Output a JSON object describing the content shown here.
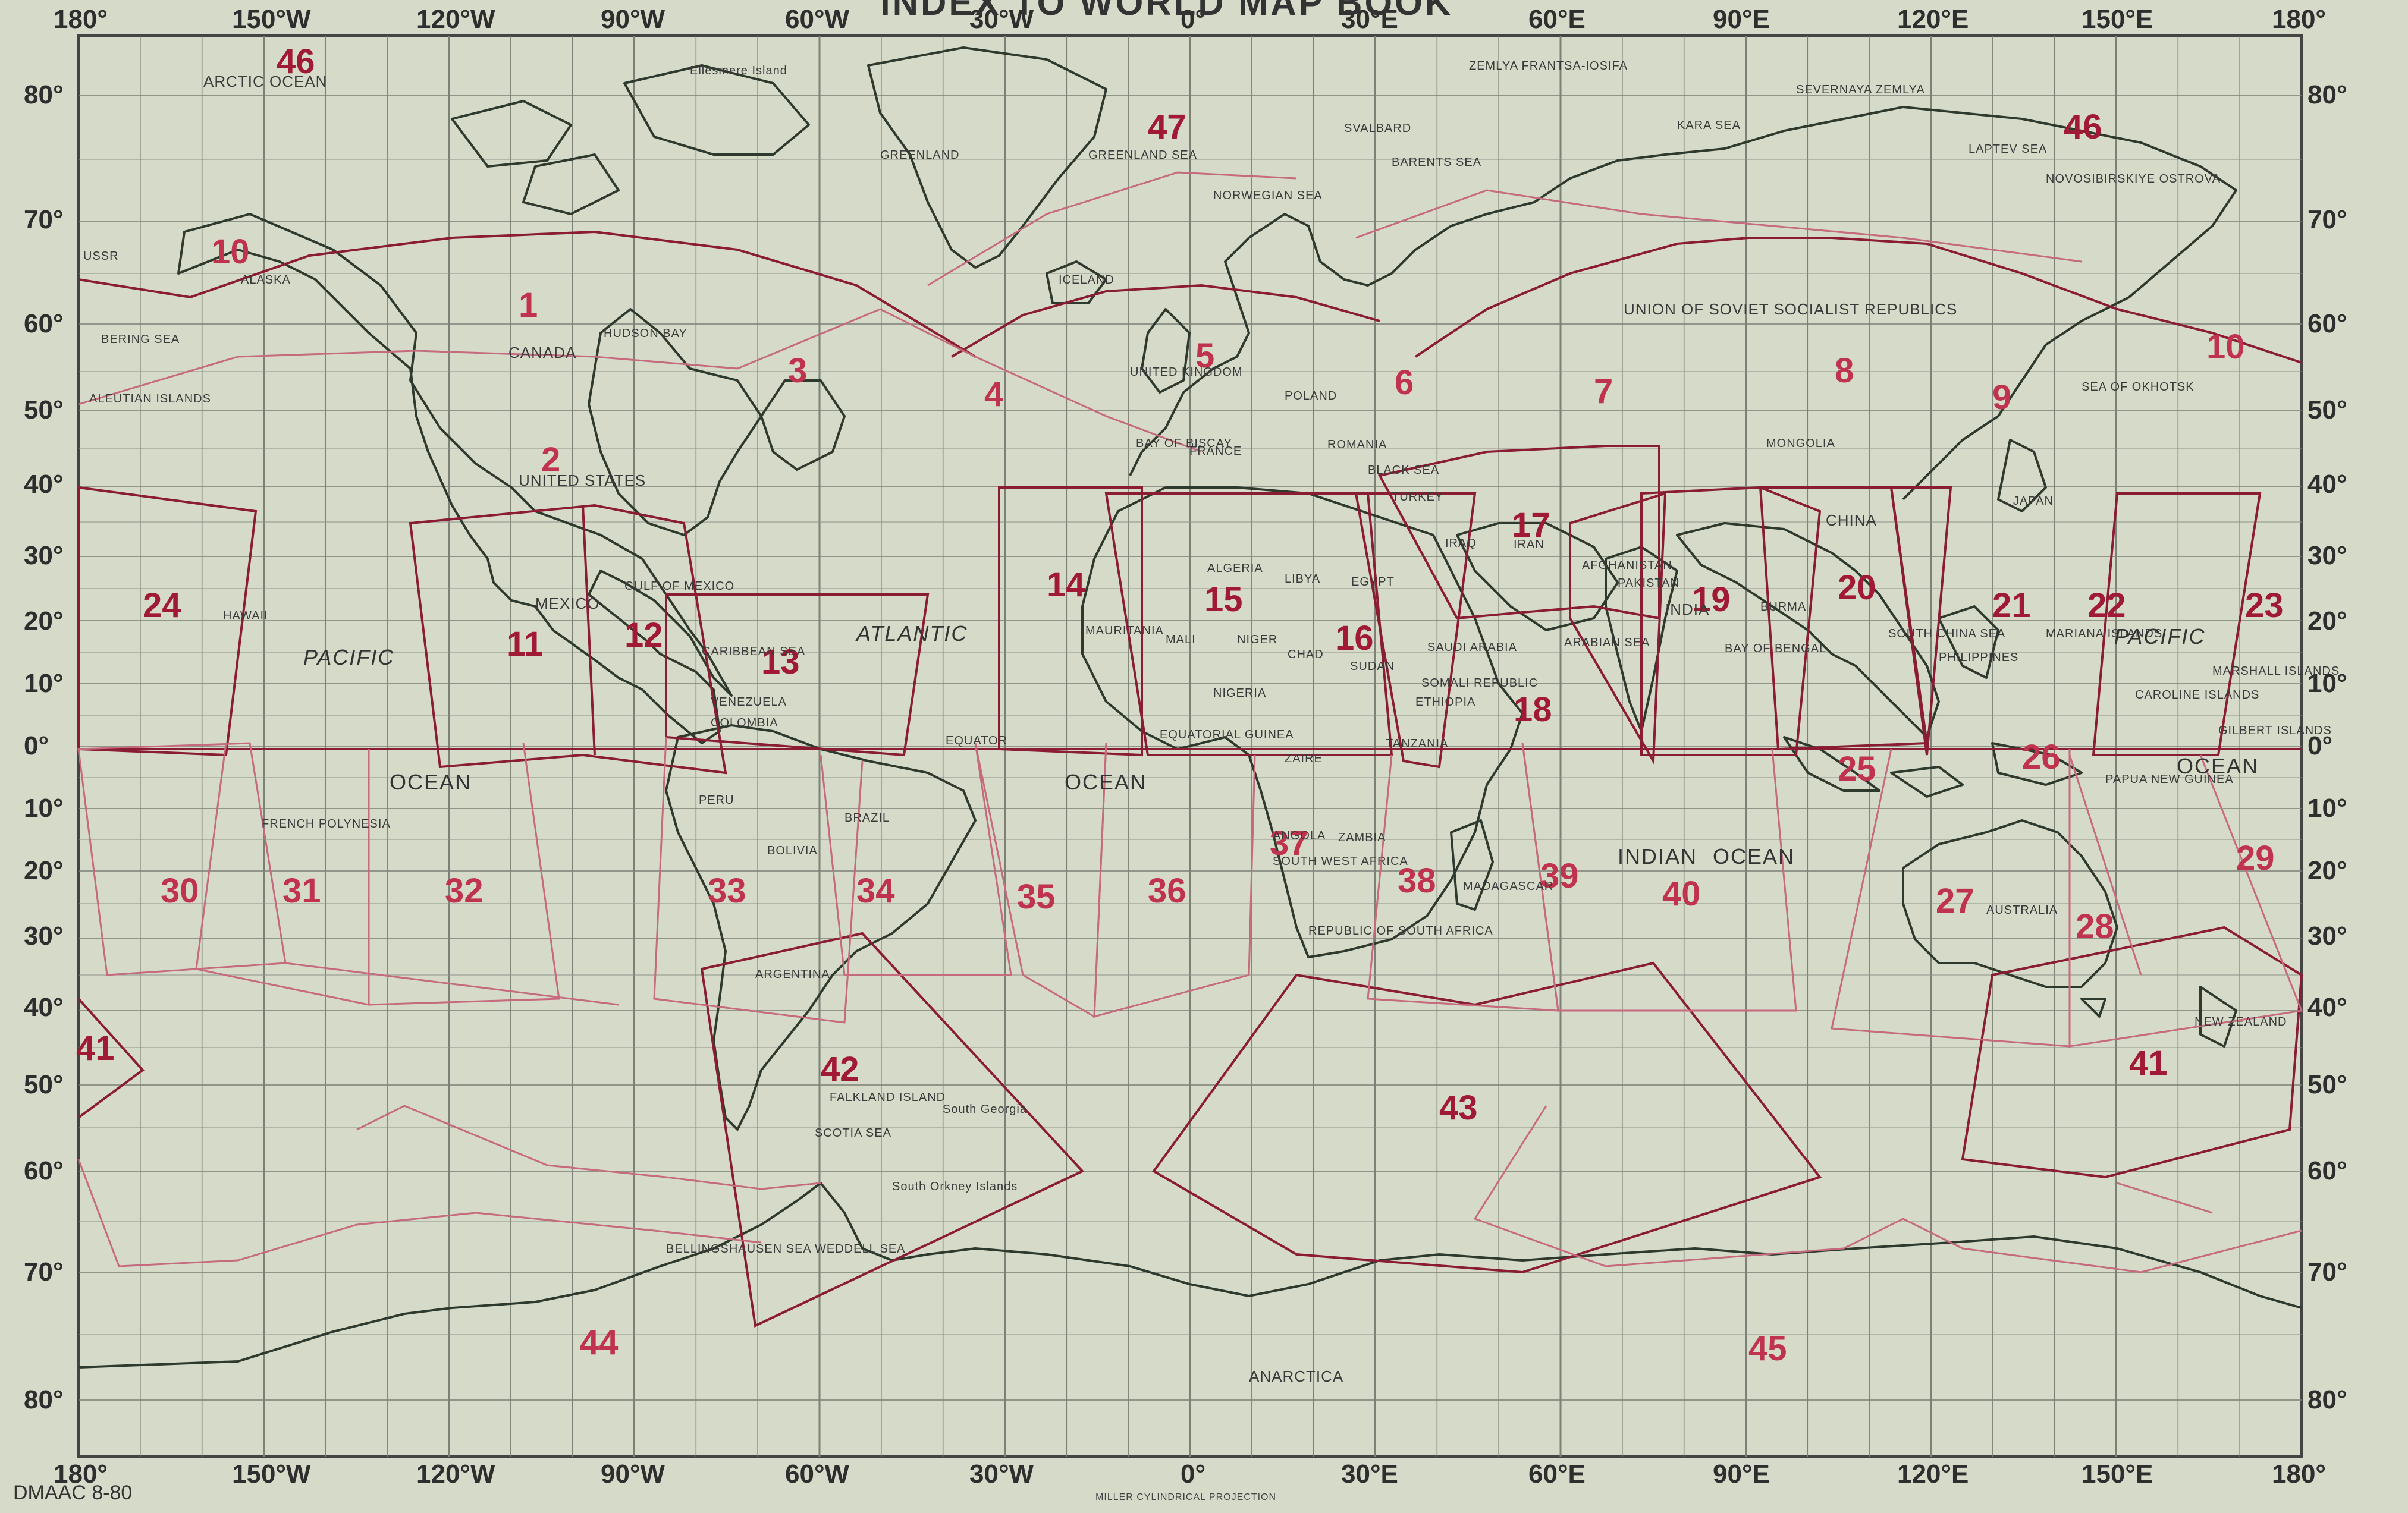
{
  "header": {
    "title": "INDEX TO WORLD MAP BOOK"
  },
  "longitude_top": [
    "180°",
    "150°W",
    "120°W",
    "90°W",
    "60°W",
    "30°W",
    "0°",
    "30°E",
    "60°E",
    "90°E",
    "120°E",
    "150°E",
    "180°"
  ],
  "longitude_bottom": [
    "180°",
    "150°W",
    "120°W",
    "90°W",
    "60°W",
    "30°W",
    "0°",
    "30°E",
    "60°E",
    "90°E",
    "120°E",
    "150°E",
    "180°"
  ],
  "latitude_left": [
    "80°",
    "70°",
    "60°",
    "50°",
    "40°",
    "30°",
    "20°",
    "10°",
    "0°",
    "10°",
    "20°",
    "30°",
    "40°",
    "50°",
    "60°",
    "70°",
    "80°"
  ],
  "latitude_right": [
    "80°",
    "70°",
    "60°",
    "50°",
    "40°",
    "30°",
    "20°",
    "10°",
    "0°",
    "10°",
    "20°",
    "30°",
    "40°",
    "50°",
    "60°",
    "70°",
    "80°"
  ],
  "zones": [
    "46",
    "10",
    "1",
    "2",
    "3",
    "4",
    "47",
    "5",
    "6",
    "7",
    "8",
    "9",
    "46",
    "10",
    "24",
    "11",
    "12",
    "13",
    "14",
    "15",
    "16",
    "17",
    "19",
    "20",
    "21",
    "22",
    "23",
    "18",
    "25",
    "26",
    "30",
    "31",
    "32",
    "33",
    "34",
    "35",
    "36",
    "37",
    "38",
    "39",
    "40",
    "27",
    "28",
    "29",
    "41",
    "42",
    "43",
    "41",
    "44",
    "45"
  ],
  "places": [
    "ARCTIC OCEAN",
    "Ellesmere Island",
    "GREENLAND",
    "GREENLAND SEA",
    "ZEMLYA FRANTSA-IOSIFA",
    "SEVERNAYA ZEMLYA",
    "KARA SEA",
    "LAPTEV SEA",
    "NOVOSIBIRSKIYE OSTROVA",
    "SVALBARD",
    "BARENTS SEA",
    "NORWEGIAN SEA",
    "ICELAND",
    "ALASKA",
    "USSR",
    "BERING SEA",
    "ALEUTIAN ISLANDS",
    "CANADA",
    "HUDSON BAY",
    "UNITED STATES",
    "MEXICO",
    "GULF OF MEXICO",
    "CARIBBEAN SEA",
    "VENEZUELA",
    "COLOMBIA",
    "EQUATOR",
    "PERU",
    "BOLIVIA",
    "BRAZIL",
    "ARGENTINA",
    "FALKLAND ISLAND",
    "SCOTIA SEA",
    "South Georgia",
    "South Orkney Islands",
    "WEDDELL SEA",
    "BELLINGSHAUSEN SEA",
    "FRENCH POLYNESIA",
    "UNITED KINGDOM",
    "BAY OF BISCAY",
    "FRANCE",
    "POLAND",
    "ROMANIA",
    "BLACK SEA",
    "TURKEY",
    "ALGERIA",
    "LIBYA",
    "EGYPT",
    "MAURITANIA",
    "MALI",
    "NIGER",
    "CHAD",
    "SUDAN",
    "NIGERIA",
    "EQUATORIAL GUINEA",
    "ZAIRE",
    "TANZANIA",
    "ANGOLA",
    "ZAMBIA",
    "SOUTH WEST AFRICA",
    "REPUBLIC OF SOUTH AFRICA",
    "MADAGASCAR",
    "ETHIOPIA",
    "SOMALI REPUBLIC",
    "SAUDI ARABIA",
    "IRAQ",
    "IRAN",
    "AFGHANISTAN",
    "PAKISTAN",
    "INDIA",
    "ARABIAN SEA",
    "BAY OF BENGAL",
    "BURMA",
    "CHINA",
    "MONGOLIA",
    "SOUTH CHINA SEA",
    "PHILIPPINES",
    "JAPAN",
    "SEA OF OKHOTSK",
    "MARIANA ISLANDS",
    "CAROLINE ISLANDS",
    "MARSHALL ISLANDS",
    "GILBERT ISLANDS",
    "PAPUA NEW GUINEA",
    "AUSTRALIA",
    "NEW ZEALAND",
    "UNION OF SOVIET SOCIALIST REPUBLICS",
    "HAWAII",
    "ANARCTICA"
  ],
  "oceans": [
    "PACIFIC",
    "OCEAN",
    "ATLANTIC",
    "OCEAN",
    "INDIAN",
    "OCEAN",
    "PACIFIC",
    "OCEAN"
  ],
  "footer": {
    "code": "DMAAC 8-80",
    "projection": "MILLER CYLINDRICAL PROJECTION"
  },
  "colors": {
    "background": "#d6dac9",
    "grid": "#6e7268",
    "coast": "#2f3a2e",
    "zone_line": "#8a1c34",
    "zone_light": "#c66a7e",
    "zone_text": "#c0334f"
  }
}
